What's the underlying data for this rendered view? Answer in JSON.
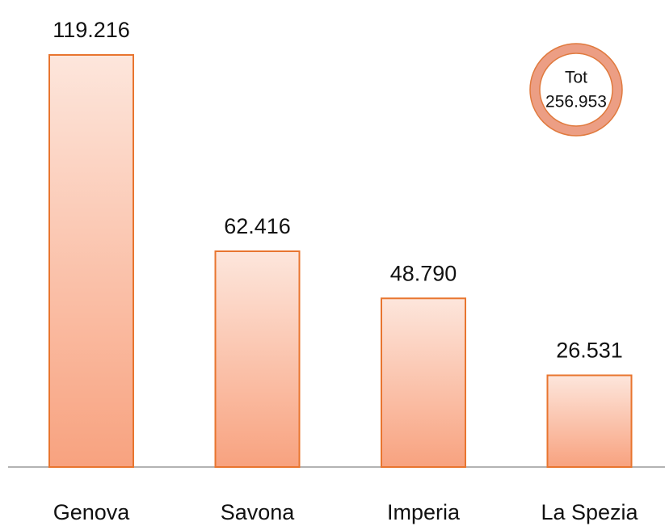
{
  "chart_data": {
    "type": "bar",
    "categories": [
      "Genova",
      "Savona",
      "Imperia",
      "La Spezia"
    ],
    "values": [
      119216,
      62416,
      48790,
      26531
    ],
    "value_labels": [
      "119.216",
      "62.416",
      "48.790",
      "26.531"
    ],
    "color": "#e8752f",
    "total": {
      "label": "Tot",
      "value": 256953,
      "value_label": "256.953"
    }
  }
}
